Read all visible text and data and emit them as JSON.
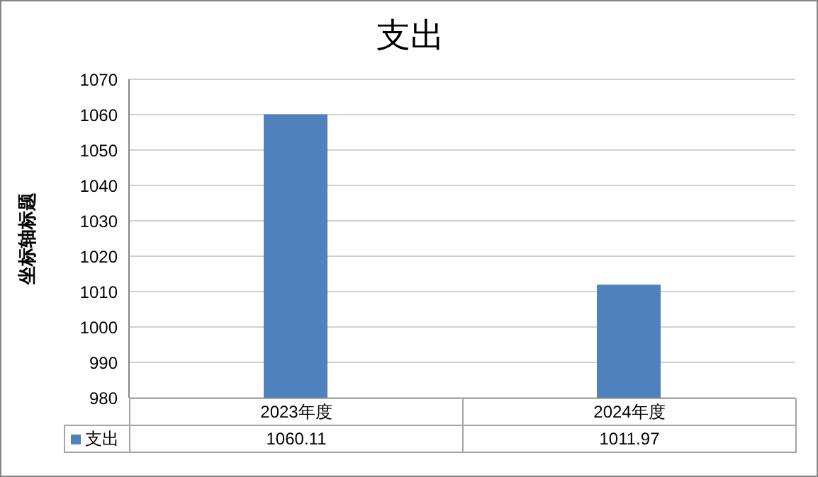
{
  "chart_data": {
    "type": "bar",
    "title": "支出",
    "ylabel": "坐标轴标题",
    "categories": [
      "2023年度",
      "2024年度"
    ],
    "series": [
      {
        "name": "支出",
        "color": "#4f81bd",
        "values": [
          1060.11,
          1011.97
        ]
      }
    ],
    "ylim": [
      980,
      1070
    ],
    "yticks": [
      980,
      990,
      1000,
      1010,
      1020,
      1030,
      1040,
      1050,
      1060,
      1070
    ],
    "grid": "y",
    "legend": "bottom left",
    "data_labels": true
  }
}
